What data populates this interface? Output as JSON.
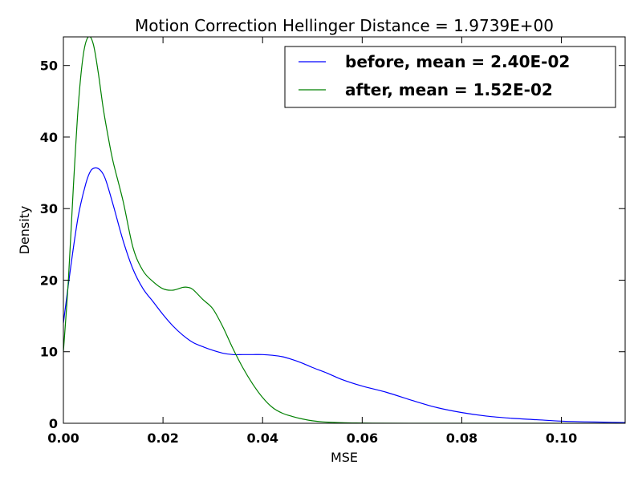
{
  "chart_data": {
    "type": "line",
    "title": "Motion Correction Hellinger Distance = 1.9739E+00",
    "xlabel": "MSE",
    "ylabel": "Density",
    "xlim": [
      0,
      0.1128
    ],
    "ylim": [
      0,
      54
    ],
    "xticks": [
      0.0,
      0.02,
      0.04,
      0.06,
      0.08,
      0.1
    ],
    "xtick_labels": [
      "0.00",
      "0.02",
      "0.04",
      "0.06",
      "0.08",
      "0.10"
    ],
    "yticks": [
      0,
      10,
      20,
      30,
      40,
      50
    ],
    "ytick_labels": [
      "0",
      "10",
      "20",
      "30",
      "40",
      "50"
    ],
    "grid": false,
    "legend_position": "top-right",
    "series": [
      {
        "name": "before, mean = 2.40E-02",
        "color": "#0000ff",
        "x": [
          0.0,
          0.0015,
          0.003,
          0.0045,
          0.0055,
          0.0065,
          0.0075,
          0.0085,
          0.01,
          0.012,
          0.014,
          0.016,
          0.018,
          0.02,
          0.022,
          0.024,
          0.026,
          0.028,
          0.03,
          0.032,
          0.034,
          0.036,
          0.038,
          0.04,
          0.042,
          0.044,
          0.046,
          0.048,
          0.05,
          0.053,
          0.056,
          0.06,
          0.065,
          0.07,
          0.075,
          0.08,
          0.085,
          0.09,
          0.095,
          0.1,
          0.105,
          0.1128
        ],
        "y": [
          14.0,
          22.0,
          29.0,
          33.5,
          35.3,
          35.7,
          35.3,
          34.0,
          30.5,
          25.5,
          21.5,
          18.8,
          17.0,
          15.2,
          13.6,
          12.3,
          11.3,
          10.7,
          10.2,
          9.8,
          9.6,
          9.6,
          9.6,
          9.6,
          9.5,
          9.3,
          8.9,
          8.4,
          7.8,
          7.0,
          6.1,
          5.2,
          4.3,
          3.2,
          2.2,
          1.5,
          1.0,
          0.7,
          0.5,
          0.3,
          0.2,
          0.1
        ]
      },
      {
        "name": "after, mean = 1.52E-02",
        "color": "#008000",
        "x": [
          0.0,
          0.001,
          0.002,
          0.003,
          0.004,
          0.005,
          0.006,
          0.007,
          0.008,
          0.009,
          0.01,
          0.012,
          0.014,
          0.016,
          0.018,
          0.02,
          0.022,
          0.024,
          0.025,
          0.026,
          0.028,
          0.03,
          0.032,
          0.034,
          0.036,
          0.038,
          0.04,
          0.042,
          0.044,
          0.046,
          0.048,
          0.05,
          0.052,
          0.055,
          0.058,
          0.062,
          0.07,
          0.08,
          0.09,
          0.1,
          0.1128
        ],
        "y": [
          10.0,
          20.0,
          33.0,
          44.5,
          51.5,
          54.0,
          53.0,
          49.0,
          44.0,
          40.0,
          36.5,
          31.0,
          24.5,
          21.3,
          19.8,
          18.8,
          18.6,
          19.0,
          19.0,
          18.7,
          17.3,
          16.0,
          13.5,
          10.5,
          7.8,
          5.5,
          3.6,
          2.2,
          1.4,
          0.95,
          0.6,
          0.35,
          0.2,
          0.1,
          0.05,
          0.02,
          0.0,
          0.0,
          0.0,
          0.0,
          0.0
        ]
      }
    ]
  }
}
